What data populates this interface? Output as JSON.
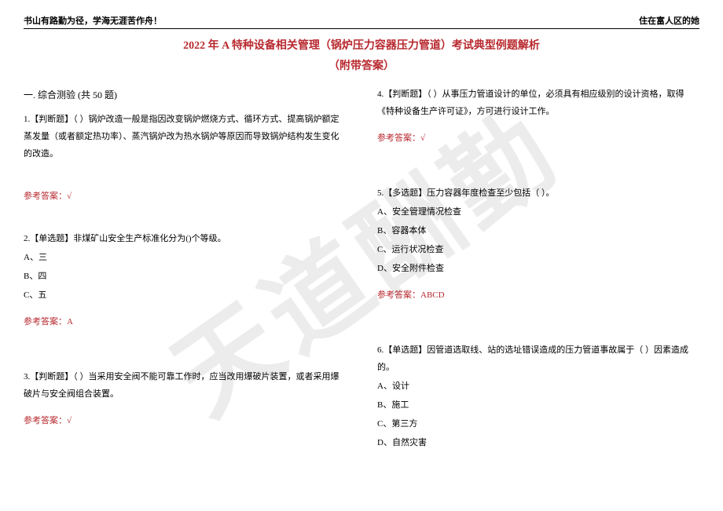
{
  "header": {
    "left": "书山有路勤为径，学海无涯苦作舟！",
    "right": "住在富人区的她"
  },
  "title_line1": "2022 年 A 特种设备相关管理（锅炉压力容器压力管道）考试典型例题解析",
  "title_line2": "（附带答案）",
  "watermark": "天道酬勤",
  "section_heading": "一. 综合测验 (共 50 题)",
  "answer_label_prefix": "参考答案：",
  "left_col": {
    "q1": {
      "text": "1.【判断题】（ ）锅炉改造一般是指因改变锅炉燃烧方式、循环方式、提高锅炉额定蒸发量（或者额定热功率）、蒸汽锅炉改为热水锅炉等原因而导致锅炉结构发生变化的改造。",
      "answer": "√"
    },
    "q2": {
      "text": "2.【单选题】非煤矿山安全生产标准化分为()个等级。",
      "optA": "A、三",
      "optB": "B、四",
      "optC": "C、五",
      "answer": "A"
    },
    "q3": {
      "text": "3.【判断题】（ ）当采用安全阀不能可靠工作时，应当改用爆破片装置，或者采用爆破片与安全阀组合装置。",
      "answer": "√"
    }
  },
  "right_col": {
    "q4": {
      "text": "4.【判断题】（ ）从事压力管道设计的单位，必须具有相应级别的设计资格，取得《特种设备生产许可证》，方可进行设计工作。",
      "answer": "√"
    },
    "q5": {
      "text": "5.【多选题】压力容器年度检查至少包括（ ）。",
      "optA": "A、安全管理情况检查",
      "optB": "B、容器本体",
      "optC": "C、运行状况检查",
      "optD": "D、安全附件检查",
      "answer": "ABCD"
    },
    "q6": {
      "text": "6.【单选题】因管道选取线、站的选址错误造成的压力管道事故属于（ ）因素造成的。",
      "optA": "A、设计",
      "optB": "B、施工",
      "optC": "C、第三方",
      "optD": "D、自然灾害"
    }
  }
}
